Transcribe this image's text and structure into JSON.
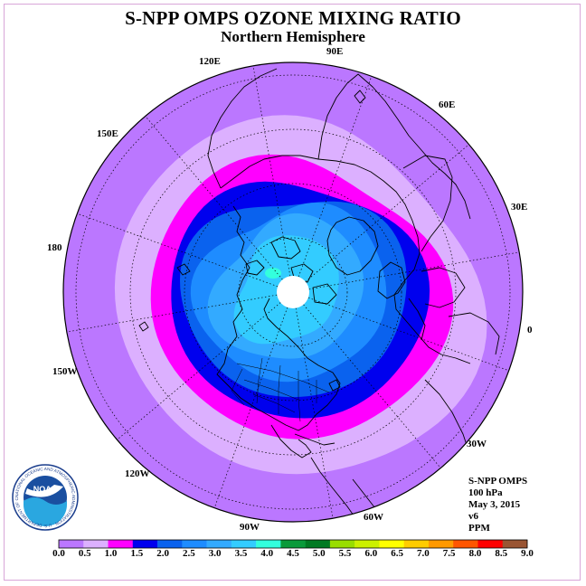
{
  "header": {
    "title": "S-NPP OMPS OZONE MIXING RATIO",
    "subtitle": "Northern Hemisphere"
  },
  "map": {
    "projection": "north-polar-stereographic",
    "longitude_labels": [
      "120E",
      "90E",
      "60E",
      "150E",
      "30E",
      "180",
      "0",
      "150W",
      "30W",
      "120W",
      "60W",
      "90W"
    ],
    "pole_no_data": true
  },
  "info": {
    "instrument": "S-NPP OMPS",
    "level": "100 hPa",
    "date": "May 3, 2015",
    "version": "v6",
    "units": "PPM"
  },
  "colorbar": {
    "ticks": [
      "0.0",
      "0.5",
      "1.0",
      "1.5",
      "2.0",
      "2.5",
      "3.0",
      "3.5",
      "4.0",
      "4.5",
      "5.0",
      "5.5",
      "6.0",
      "6.5",
      "7.0",
      "7.5",
      "8.0",
      "8.5",
      "9.0"
    ],
    "colors": [
      "#bb77ff",
      "#dcb0ff",
      "#ff00ff",
      "#0000ee",
      "#0a62ee",
      "#1e8cff",
      "#33aaff",
      "#33ccff",
      "#33ffdd",
      "#0a9a3a",
      "#007a22",
      "#99dd00",
      "#ccf000",
      "#ffff00",
      "#ffcc00",
      "#ff9900",
      "#ff5500",
      "#ff0000",
      "#9a5533"
    ]
  },
  "logo": {
    "text": "NOAA",
    "ring_text": "NATIONAL OCEANIC AND ATMOSPHERIC ADMINISTRATION · U.S. DEPARTMENT OF COMMERCE"
  },
  "colors": {
    "outer_band": "#bb77ff",
    "band_0_5": "#dcb0ff",
    "band_1_0": "#ff00ff",
    "band_1_5": "#0000ee",
    "band_2_0": "#0a62ee",
    "band_2_5": "#1e8cff",
    "band_3_0": "#33aaff",
    "band_3_5": "#33ccff",
    "band_4_0": "#33ffdd"
  }
}
